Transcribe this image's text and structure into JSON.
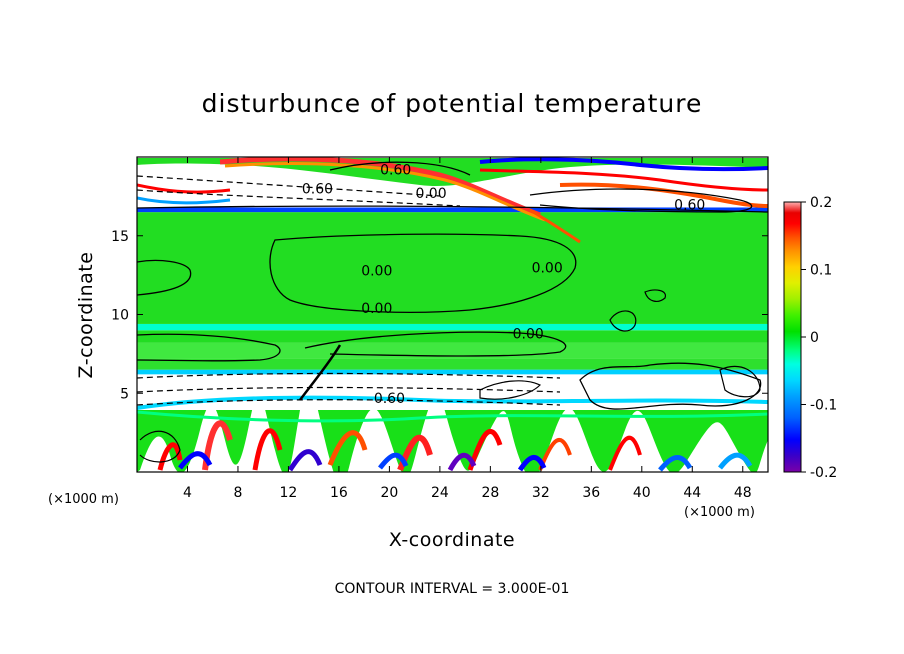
{
  "chart_data": {
    "type": "heatmap",
    "title": "disturbunce of potential temperature",
    "xlabel": "X-coordinate",
    "ylabel": "Z-coordinate",
    "x_unit": "(×1000 m)",
    "y_unit": "(×1000 m)",
    "xlim": [
      0,
      50
    ],
    "ylim": [
      0,
      20
    ],
    "x_ticks": [
      4,
      8,
      12,
      16,
      20,
      24,
      28,
      32,
      36,
      40,
      44,
      48
    ],
    "y_ticks": [
      5,
      10,
      15
    ],
    "colorbar": {
      "range": [
        -0.2,
        0.2
      ],
      "tick_values": [
        0.2,
        0.1,
        0,
        -0.1,
        -0.2
      ],
      "tick_labels": [
        "0.2",
        "0.1",
        "0",
        "-0.1",
        "-0.2"
      ],
      "colors": [
        "#7a00a8",
        "#3a00c8",
        "#0000ff",
        "#0060ff",
        "#00a0ff",
        "#00d8ff",
        "#00ffe0",
        "#00ff80",
        "#00e000",
        "#40f000",
        "#a0f000",
        "#e0f000",
        "#ffd000",
        "#ff9000",
        "#ff5000",
        "#ff0000",
        "#e80000",
        "#ffb0b0"
      ]
    },
    "contour_interval": "CONTOUR INTERVAL = 3.000E-01",
    "contour_labels": [
      {
        "text": "0.60",
        "x": 20.5,
        "y": 19.2
      },
      {
        "text": "0.60",
        "x": 14.3,
        "y": 18.0
      },
      {
        "text": "0.00",
        "x": 23.3,
        "y": 17.7
      },
      {
        "text": "0.60",
        "x": 43.8,
        "y": 17.0
      },
      {
        "text": "0.00",
        "x": 19.0,
        "y": 12.8
      },
      {
        "text": "0.00",
        "x": 32.5,
        "y": 13.0
      },
      {
        "text": "0.00",
        "x": 19.0,
        "y": 10.4
      },
      {
        "text": "0.00",
        "x": 31.0,
        "y": 8.8
      },
      {
        "text": "0.60",
        "x": 20.0,
        "y": 4.7
      }
    ],
    "bands": [
      {
        "y0": 0.0,
        "y1": 2.0,
        "color": "#18e018"
      },
      {
        "y0": 2.0,
        "y1": 4.8,
        "color": "#ffffff"
      },
      {
        "y0": 4.8,
        "y1": 6.2,
        "color": "#ffffff"
      },
      {
        "y0": 6.2,
        "y1": 6.5,
        "color": "#00d0ff"
      },
      {
        "y0": 6.5,
        "y1": 7.2,
        "color": "#2ee02e"
      },
      {
        "y0": 7.2,
        "y1": 8.2,
        "color": "#40e840"
      },
      {
        "y0": 8.2,
        "y1": 9.0,
        "color": "#22dd22"
      },
      {
        "y0": 9.0,
        "y1": 9.4,
        "color": "#00ffd0"
      },
      {
        "y0": 9.4,
        "y1": 16.5,
        "color": "#22dd22"
      },
      {
        "y0": 16.5,
        "y1": 16.8,
        "color": "#0040ff"
      },
      {
        "y0": 16.8,
        "y1": 18.6,
        "color": "#ffffff"
      },
      {
        "y0": 18.6,
        "y1": 20.0,
        "color": "#ffffff"
      }
    ]
  }
}
